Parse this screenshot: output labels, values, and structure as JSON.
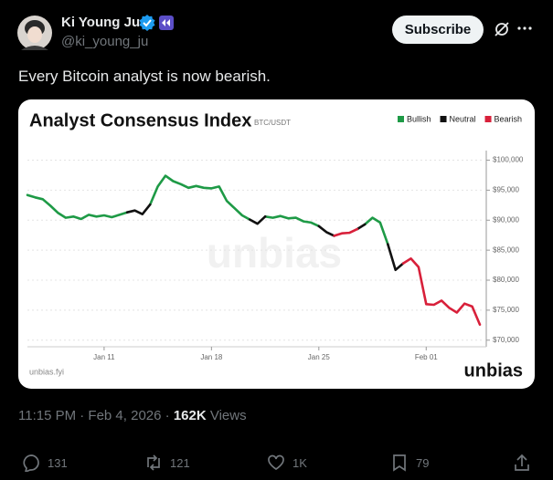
{
  "tweet": {
    "author": {
      "name": "Ki Young Ju",
      "handle": "@ki_young_ju"
    },
    "subscribe": "Subscribe",
    "text": "Every Bitcoin analyst is now bearish.",
    "timestamp": "11:15 PM · Feb 4, 2026 ·",
    "views": "162K",
    "views_label": "Views",
    "actions": {
      "replies": "131",
      "reposts": "121",
      "likes": "1K",
      "bookmarks": "79"
    }
  },
  "chart_data": {
    "type": "line",
    "title": "Analyst Consensus Index",
    "subtitle": "BTC/USDT",
    "watermark": "unbias",
    "source": "unbias.fyi",
    "logo": "unbias",
    "legend": "top-right",
    "categories": [
      null,
      null,
      null,
      null,
      null,
      null,
      null,
      null,
      null,
      null,
      "Jan 11",
      null,
      null,
      null,
      null,
      null,
      null,
      null,
      null,
      null,
      null,
      null,
      null,
      null,
      "Jan 18",
      null,
      null,
      null,
      null,
      null,
      null,
      null,
      null,
      null,
      null,
      null,
      null,
      null,
      "Jan 25",
      null,
      null,
      null,
      null,
      null,
      null,
      null,
      null,
      null,
      null,
      null,
      null,
      null,
      "Feb 01",
      null,
      null,
      null,
      null,
      null,
      null,
      null
    ],
    "series": [
      {
        "name": "Bullish",
        "color": "#1e9a46",
        "values": [
          94200,
          93800,
          93500,
          92400,
          91200,
          90400,
          90600,
          90200,
          90900,
          90600,
          90800,
          90500,
          90900,
          91300,
          null,
          null,
          92600,
          95600,
          97400,
          96500,
          96000,
          95400,
          95700,
          95400,
          95300,
          95600,
          93200,
          92000,
          90800,
          90100,
          null,
          90600,
          90400,
          90700,
          90300,
          90400,
          89800,
          89600,
          89000,
          null,
          null,
          null,
          null,
          null,
          89300,
          90400,
          89600,
          86000,
          null,
          null,
          null,
          null,
          null,
          null,
          null,
          null,
          null,
          null,
          null,
          null
        ]
      },
      {
        "name": "Neutral",
        "color": "#111111",
        "values": [
          null,
          null,
          null,
          null,
          null,
          null,
          null,
          null,
          null,
          null,
          null,
          null,
          null,
          91300,
          91600,
          91000,
          92600,
          null,
          null,
          null,
          null,
          null,
          null,
          null,
          null,
          null,
          null,
          null,
          null,
          90100,
          89400,
          90600,
          null,
          null,
          null,
          null,
          null,
          null,
          89000,
          88000,
          87400,
          null,
          null,
          88500,
          89300,
          null,
          null,
          86000,
          81700,
          82800,
          null,
          null,
          null,
          null,
          null,
          null,
          null,
          null,
          null,
          null
        ]
      },
      {
        "name": "Bearish",
        "color": "#d8203a",
        "values": [
          null,
          null,
          null,
          null,
          null,
          null,
          null,
          null,
          null,
          null,
          null,
          null,
          null,
          null,
          null,
          null,
          null,
          null,
          null,
          null,
          null,
          null,
          null,
          null,
          null,
          null,
          null,
          null,
          null,
          null,
          null,
          null,
          null,
          null,
          null,
          null,
          null,
          null,
          null,
          null,
          87400,
          87800,
          87900,
          88500,
          null,
          null,
          null,
          null,
          null,
          82800,
          83600,
          82200,
          76000,
          75900,
          76600,
          75400,
          74600,
          76100,
          75600,
          72600
        ]
      }
    ],
    "ylim": [
      68900,
      101600
    ],
    "yticks": [
      {
        "value": 70000,
        "label": "$70,000"
      },
      {
        "value": 75000,
        "label": "$75,000"
      },
      {
        "value": 80000,
        "label": "$80,000"
      },
      {
        "value": 85000,
        "label": "$85,000"
      },
      {
        "value": 90000,
        "label": "$90,000"
      },
      {
        "value": 95000,
        "label": "$95,000"
      },
      {
        "value": 100000,
        "label": "$100,000"
      }
    ]
  }
}
